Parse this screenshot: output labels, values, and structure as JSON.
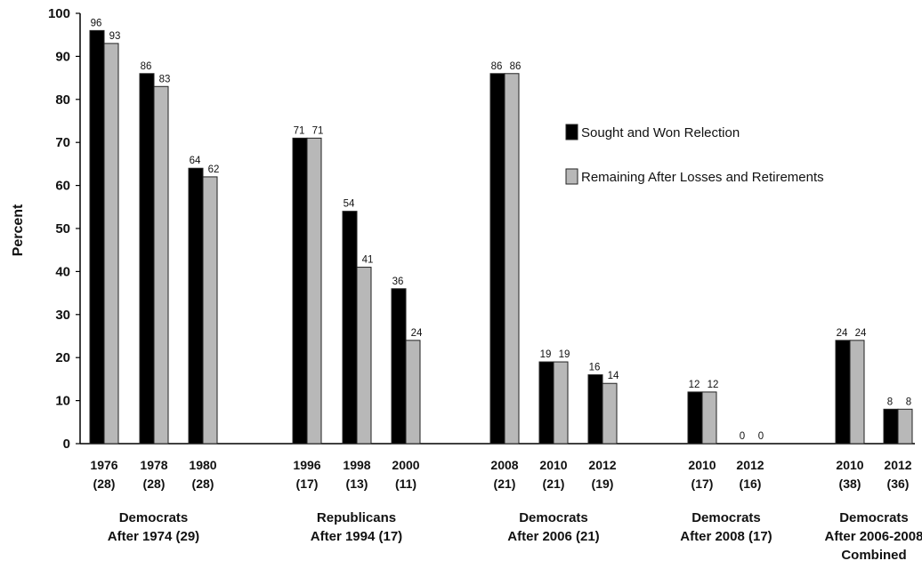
{
  "chart_data": {
    "type": "bar",
    "title": "",
    "xlabel": "",
    "ylabel": "Percent",
    "ylim": [
      0,
      100
    ],
    "yticks": [
      "0",
      "10",
      "20",
      "30",
      "40",
      "50",
      "60",
      "70",
      "80",
      "90",
      "100"
    ],
    "grid": false,
    "legend_position": "right",
    "series": [
      {
        "name": "Sought and Won Relection",
        "color": "#000000",
        "values": [
          96,
          86,
          64,
          71,
          54,
          36,
          86,
          19,
          16,
          12,
          0,
          24,
          8
        ]
      },
      {
        "name": "Remaining After Losses and Retirements",
        "color": "#b8b8b8",
        "values": [
          93,
          83,
          62,
          71,
          41,
          24,
          86,
          19,
          14,
          12,
          0,
          24,
          8
        ]
      }
    ],
    "categories": [
      {
        "year": "1976",
        "n": "(28)"
      },
      {
        "year": "1978",
        "n": "(28)"
      },
      {
        "year": "1980",
        "n": "(28)"
      },
      {
        "year": "1996",
        "n": "(17)"
      },
      {
        "year": "1998",
        "n": "(13)"
      },
      {
        "year": "2000",
        "n": "(11)"
      },
      {
        "year": "2008",
        "n": "(21)"
      },
      {
        "year": "2010",
        "n": "(21)"
      },
      {
        "year": "2012",
        "n": "(19)"
      },
      {
        "year": "2010",
        "n": "(17)"
      },
      {
        "year": "2012",
        "n": "(16)"
      },
      {
        "year": "2010",
        "n": "(38)"
      },
      {
        "year": "2012",
        "n": "(36)"
      }
    ],
    "groups": [
      {
        "lines": [
          "Democrats",
          "After 1974 (29)"
        ],
        "members": [
          0,
          1,
          2
        ]
      },
      {
        "lines": [
          "Republicans",
          "After 1994 (17)"
        ],
        "members": [
          3,
          4,
          5
        ]
      },
      {
        "lines": [
          "Democrats",
          "After 2006 (21)"
        ],
        "members": [
          6,
          7,
          8
        ]
      },
      {
        "lines": [
          "Democrats",
          "After 2008 (17)"
        ],
        "members": [
          9,
          10
        ]
      },
      {
        "lines": [
          "Democrats",
          "After 2006-2008",
          "Combined"
        ],
        "members": [
          11,
          12
        ]
      }
    ]
  }
}
